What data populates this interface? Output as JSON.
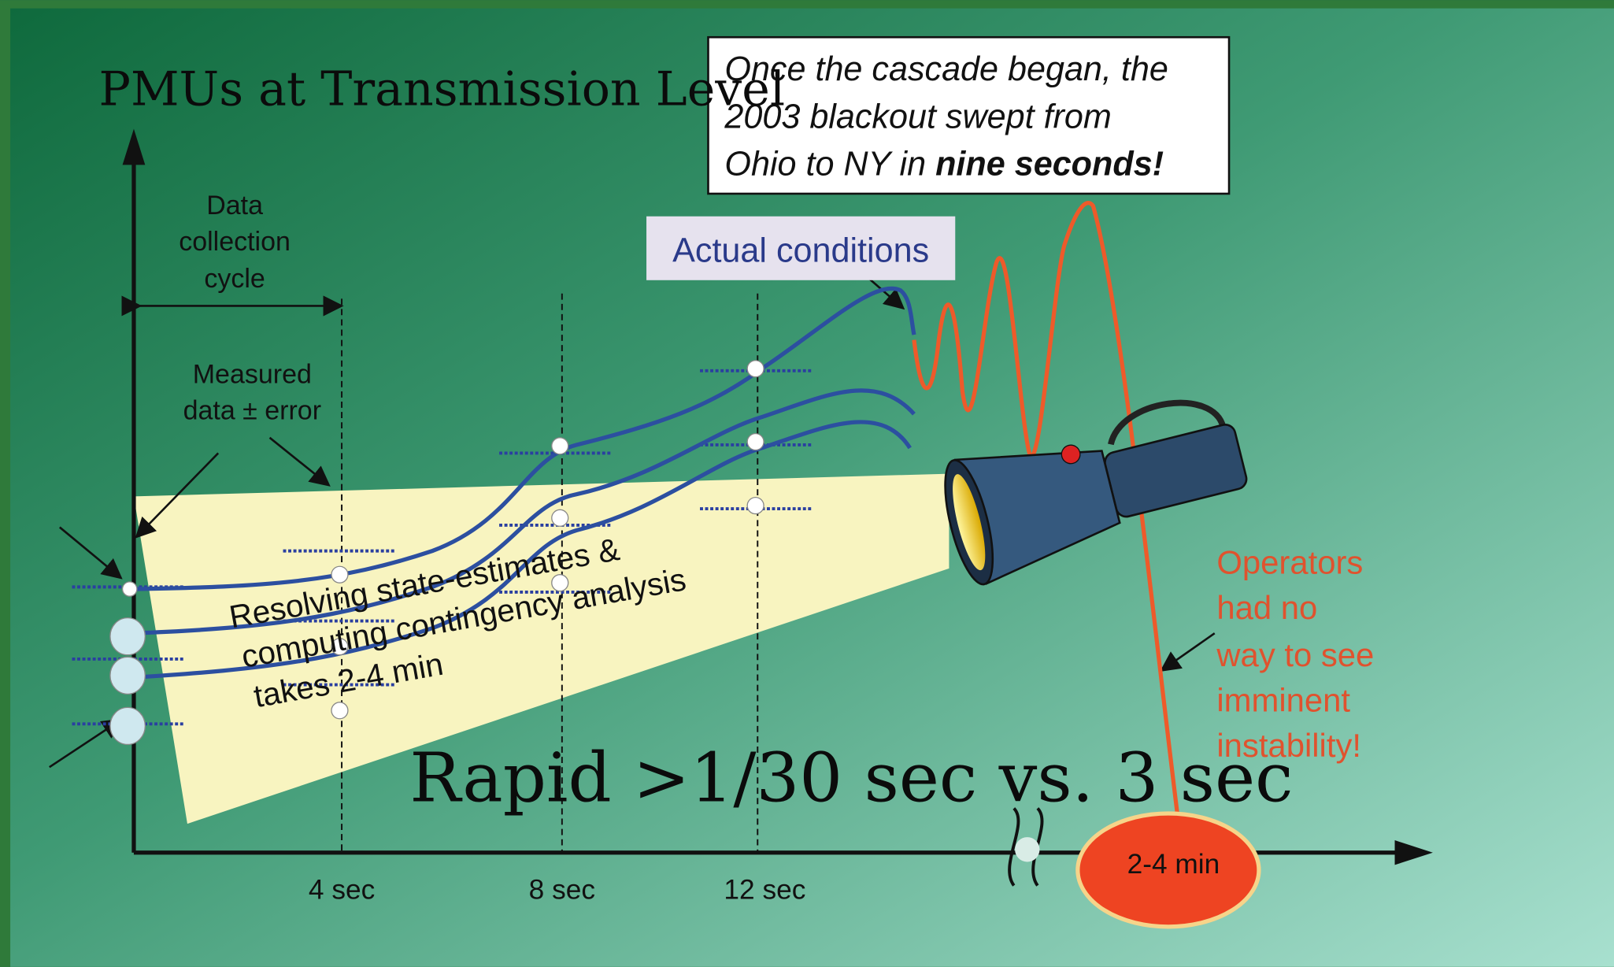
{
  "header": {
    "title": "PMUs at Transmission Level"
  },
  "callout": {
    "line1": "Once the cascade began, the",
    "line2": "2003 blackout swept from",
    "line3": "Ohio to NY in ",
    "emphasis": "nine seconds!"
  },
  "diagram": {
    "actual_conditions": "Actual conditions",
    "data_collection": [
      "Data",
      "collection",
      "cycle"
    ],
    "measured": [
      "Measured",
      "data ± error"
    ],
    "beam_text": [
      "Resolving state-estimates &",
      "computing contingency analysis",
      "takes 2-4 min"
    ],
    "time_ticks": [
      "4 sec",
      "8 sec",
      "12 sec",
      "2-4 min"
    ],
    "warning": [
      "Operators",
      "had no",
      "way to see",
      "imminent",
      "instability!"
    ]
  },
  "footer": {
    "caption": "Rapid >1/30 sec vs. 3 sec"
  }
}
